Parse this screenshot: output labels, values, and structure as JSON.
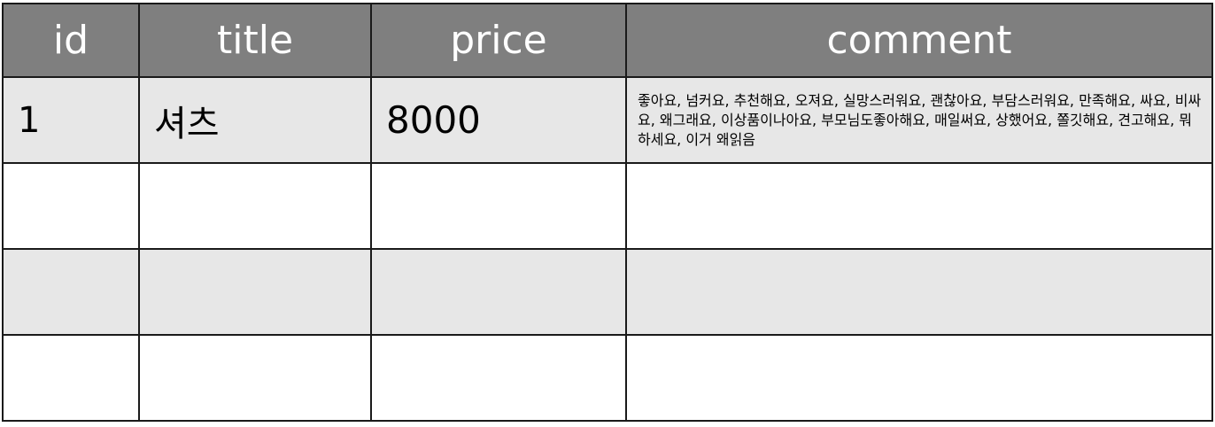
{
  "table": {
    "headers": {
      "id": "id",
      "title": "title",
      "price": "price",
      "comment": "comment"
    },
    "rows": [
      {
        "id": "1",
        "title": "셔츠",
        "price": "8000",
        "comment": "좋아요, 넘커요, 추천해요, 오져요, 실망스러워요, 괜찮아요, 부담스러워요, 만족해요, 싸요, 비싸요, 왜그래요, 이상품이나아요, 부모님도좋아해요, 매일써요, 상했어요, 쫄깃해요, 견고해요, 뭐하세요, 이거 왜읽음"
      },
      {
        "id": "",
        "title": "",
        "price": "",
        "comment": ""
      },
      {
        "id": "",
        "title": "",
        "price": "",
        "comment": ""
      },
      {
        "id": "",
        "title": "",
        "price": "",
        "comment": ""
      }
    ]
  },
  "colors": {
    "header_bg": "#7f7f7f",
    "header_text": "#ffffff",
    "row_shaded": "#e7e7e7",
    "row_plain": "#ffffff",
    "border": "#1a1a1a"
  }
}
